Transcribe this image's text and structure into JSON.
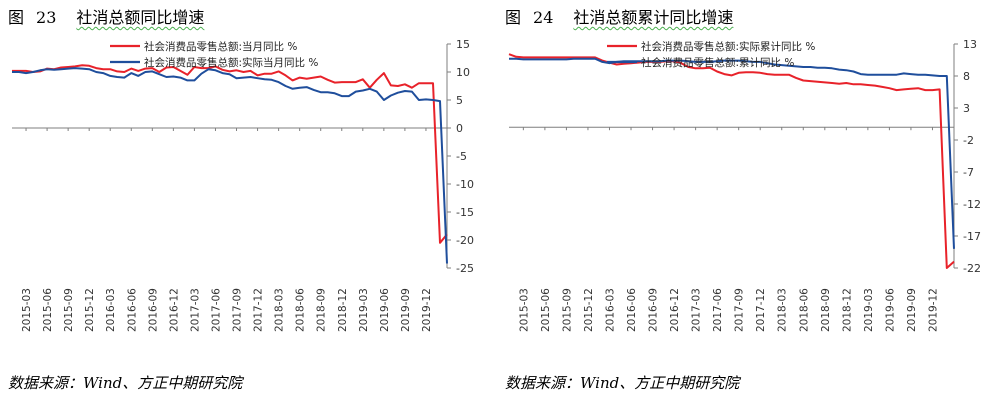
{
  "figures": [
    {
      "fig_label": "图",
      "fig_number": "23",
      "fig_title": "社消总额同比增速",
      "source": "数据来源：Wind、方正中期研究院"
    },
    {
      "fig_label": "图",
      "fig_number": "24",
      "fig_title": "社消总额累计同比增速",
      "source": "数据来源：Wind、方正中期研究院"
    }
  ],
  "colors": {
    "red": "#e8222a",
    "blue": "#1f4e9c"
  },
  "chart_data": [
    {
      "type": "line",
      "x_tick_labels": [
        "2015-03",
        "2015-06",
        "2015-09",
        "2015-12",
        "2016-03",
        "2016-06",
        "2016-09",
        "2016-12",
        "2017-03",
        "2017-06",
        "2017-09",
        "2017-12",
        "2018-03",
        "2018-06",
        "2018-09",
        "2018-12",
        "2019-03",
        "2019-06",
        "2019-09",
        "2019-12"
      ],
      "x": [
        "2015-01",
        "2015-02",
        "2015-03",
        "2015-04",
        "2015-05",
        "2015-06",
        "2015-07",
        "2015-08",
        "2015-09",
        "2015-10",
        "2015-11",
        "2015-12",
        "2016-01",
        "2016-02",
        "2016-03",
        "2016-04",
        "2016-05",
        "2016-06",
        "2016-07",
        "2016-08",
        "2016-09",
        "2016-10",
        "2016-11",
        "2016-12",
        "2017-01",
        "2017-02",
        "2017-03",
        "2017-04",
        "2017-05",
        "2017-06",
        "2017-07",
        "2017-08",
        "2017-09",
        "2017-10",
        "2017-11",
        "2017-12",
        "2018-01",
        "2018-02",
        "2018-03",
        "2018-04",
        "2018-05",
        "2018-06",
        "2018-07",
        "2018-08",
        "2018-09",
        "2018-10",
        "2018-11",
        "2018-12",
        "2019-01",
        "2019-02",
        "2019-03",
        "2019-04",
        "2019-05",
        "2019-06",
        "2019-07",
        "2019-08",
        "2019-09",
        "2019-10",
        "2019-11",
        "2019-12",
        "2020-01",
        "2020-02",
        "2020-03"
      ],
      "series": [
        {
          "name": "社会消费品零售总额:当月同比 %",
          "color": "#e8222a",
          "values": [
            10.2,
            10.2,
            10.2,
            10.0,
            10.1,
            10.6,
            10.5,
            10.8,
            10.9,
            11.0,
            11.2,
            11.1,
            10.7,
            10.5,
            10.5,
            10.1,
            10.0,
            10.6,
            10.2,
            10.6,
            10.7,
            10.0,
            10.8,
            10.9,
            10.2,
            9.5,
            10.9,
            10.7,
            10.7,
            11.0,
            10.4,
            10.1,
            10.3,
            10.0,
            10.2,
            9.4,
            9.7,
            9.7,
            10.1,
            9.4,
            8.5,
            9.0,
            8.8,
            9.0,
            9.2,
            8.6,
            8.1,
            8.2,
            8.2,
            8.2,
            8.7,
            7.2,
            8.6,
            9.8,
            7.6,
            7.5,
            7.8,
            7.2,
            8.0,
            8.0,
            8.0,
            -20.5,
            -19.0
          ]
        },
        {
          "name": "社会消费品零售总额:实际当月同比 %",
          "color": "#1f4e9c",
          "values": [
            10.0,
            10.0,
            9.8,
            10.0,
            10.3,
            10.5,
            10.4,
            10.5,
            10.6,
            10.7,
            10.6,
            10.5,
            10.0,
            9.8,
            9.3,
            9.1,
            9.0,
            9.8,
            9.3,
            10.0,
            10.1,
            9.6,
            9.1,
            9.2,
            9.0,
            8.5,
            8.5,
            9.7,
            10.5,
            10.3,
            9.8,
            9.6,
            8.9,
            9.0,
            9.1,
            8.9,
            8.7,
            8.6,
            8.2,
            7.5,
            7.0,
            7.2,
            7.3,
            6.8,
            6.4,
            6.4,
            6.2,
            5.7,
            5.7,
            6.5,
            6.7,
            7.0,
            6.5,
            5.0,
            5.8,
            6.3,
            6.6,
            6.5,
            5.0,
            5.1,
            5.0,
            4.8,
            -24.2
          ]
        }
      ],
      "ylim": [
        -25,
        15
      ],
      "yticks": [
        15,
        10,
        5,
        0,
        -5,
        -10,
        -15,
        -20,
        -25
      ],
      "legend_position": "top-center",
      "grid": false
    },
    {
      "type": "line",
      "x_tick_labels": [
        "2015-03",
        "2015-06",
        "2015-09",
        "2015-12",
        "2016-03",
        "2016-06",
        "2016-09",
        "2016-12",
        "2017-03",
        "2017-06",
        "2017-09",
        "2017-12",
        "2018-03",
        "2018-06",
        "2018-09",
        "2018-12",
        "2019-03",
        "2019-06",
        "2019-09",
        "2019-12"
      ],
      "x": [
        "2015-01",
        "2015-02",
        "2015-03",
        "2015-04",
        "2015-05",
        "2015-06",
        "2015-07",
        "2015-08",
        "2015-09",
        "2015-10",
        "2015-11",
        "2015-12",
        "2016-01",
        "2016-02",
        "2016-03",
        "2016-04",
        "2016-05",
        "2016-06",
        "2016-07",
        "2016-08",
        "2016-09",
        "2016-10",
        "2016-11",
        "2016-12",
        "2017-01",
        "2017-02",
        "2017-03",
        "2017-04",
        "2017-05",
        "2017-06",
        "2017-07",
        "2017-08",
        "2017-09",
        "2017-10",
        "2017-11",
        "2017-12",
        "2018-01",
        "2018-02",
        "2018-03",
        "2018-04",
        "2018-05",
        "2018-06",
        "2018-07",
        "2018-08",
        "2018-09",
        "2018-10",
        "2018-11",
        "2018-12",
        "2019-01",
        "2019-02",
        "2019-03",
        "2019-04",
        "2019-05",
        "2019-06",
        "2019-07",
        "2019-08",
        "2019-09",
        "2019-10",
        "2019-11",
        "2019-12",
        "2020-01",
        "2020-02",
        "2020-03"
      ],
      "series": [
        {
          "name": "社会消费品零售总额:实际累计同比 %",
          "color": "#e8222a",
          "values": [
            11.4,
            11.0,
            10.9,
            10.9,
            10.9,
            10.9,
            10.9,
            10.9,
            10.9,
            10.9,
            10.9,
            10.9,
            10.9,
            10.4,
            10.1,
            9.8,
            9.9,
            10.0,
            10.1,
            10.2,
            10.2,
            10.2,
            10.3,
            10.3,
            10.0,
            9.4,
            9.2,
            9.2,
            9.3,
            8.7,
            8.3,
            8.1,
            8.5,
            8.6,
            8.6,
            8.5,
            8.3,
            8.2,
            8.2,
            8.2,
            7.7,
            7.3,
            7.2,
            7.1,
            7.0,
            6.9,
            6.8,
            6.9,
            6.7,
            6.7,
            6.6,
            6.5,
            6.3,
            6.1,
            5.8,
            5.9,
            6.0,
            6.1,
            5.8,
            5.8,
            5.9,
            -22.0,
            -21.0
          ]
        },
        {
          "name": "社会消费品零售总额:累计同比 %",
          "color": "#1f4e9c",
          "values": [
            10.7,
            10.7,
            10.6,
            10.6,
            10.6,
            10.6,
            10.6,
            10.6,
            10.6,
            10.7,
            10.7,
            10.7,
            10.7,
            10.2,
            10.0,
            10.2,
            10.3,
            10.3,
            10.3,
            10.3,
            10.3,
            10.3,
            10.4,
            10.4,
            10.4,
            10.3,
            10.2,
            10.2,
            10.2,
            10.3,
            10.4,
            10.4,
            10.4,
            10.3,
            10.2,
            10.2,
            10.0,
            9.8,
            9.7,
            9.6,
            9.5,
            9.4,
            9.4,
            9.3,
            9.3,
            9.2,
            9.0,
            8.9,
            8.7,
            8.3,
            8.2,
            8.2,
            8.2,
            8.2,
            8.2,
            8.4,
            8.3,
            8.2,
            8.2,
            8.1,
            8.0,
            8.0,
            -19.0
          ]
        }
      ],
      "ylim": [
        -22,
        13
      ],
      "yticks": [
        13,
        8,
        3,
        -2,
        -7,
        -12,
        -17,
        -22
      ],
      "legend_position": "top-center",
      "grid": false
    }
  ]
}
